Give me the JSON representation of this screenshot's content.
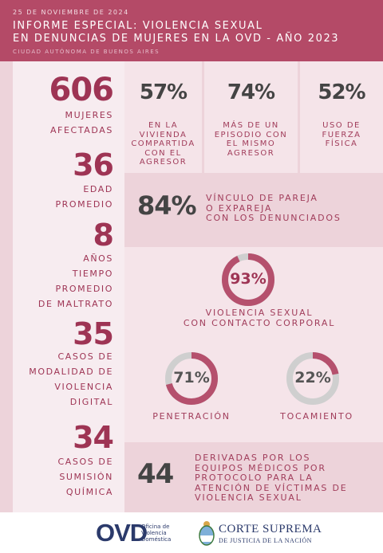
{
  "header": {
    "date": "25 DE NOVIEMBRE DE 2024",
    "title_line1": "INFORME ESPECIAL: VIOLENCIA SEXUAL",
    "title_line2": "EN DENUNCIAS DE MUJERES EN LA OVD - AÑO 2023",
    "city": "CIUDAD AUTÓNOMA DE BUENOS AIRES"
  },
  "left": [
    {
      "value": "606",
      "label": "MUJERES\nAFECTADAS"
    },
    {
      "value": "36",
      "label": "EDAD\nPROMEDIO"
    },
    {
      "value": "8",
      "label": "AÑOS\nTIEMPO\nPROMEDIO\nDE MALTRATO"
    },
    {
      "value": "35",
      "label": "CASOS DE\nMODALIDAD DE\nVIOLENCIA\nDIGITAL"
    },
    {
      "value": "34",
      "label": "CASOS DE\nSUMISIÓN\nQUÍMICA"
    }
  ],
  "stats_top": [
    {
      "value": "57%",
      "caption": "EN LA\nVIVIENDA\nCOMPARTIDA\nCON EL\nAGRESOR"
    },
    {
      "value": "74%",
      "caption": "MÁS DE UN\nEPISODIO CON\nEL MISMO\nAGRESOR"
    },
    {
      "value": "52%",
      "caption": "USO DE\nFUERZA\nFÍSICA"
    }
  ],
  "partner": {
    "value": "84%",
    "caption": "VÍNCULO DE PAREJA\nO EXPAREJA\nCON LOS DENUNCIADOS"
  },
  "rings": [
    {
      "percent": 93,
      "value": "93%",
      "caption": "VIOLENCIA SEXUAL\nCON CONTACTO CORPORAL"
    },
    {
      "percent": 71,
      "value": "71%",
      "caption": "PENETRACIÓN"
    },
    {
      "percent": 22,
      "value": "22%",
      "caption": "TOCAMIENTO"
    }
  ],
  "derived": {
    "value": "44",
    "caption": "DERIVADAS POR LOS\nEQUIPOS MÉDICOS POR\nPROTOCOLO PARA LA\nATENCIÓN DE VÍCTIMAS DE\nVIOLENCIA SEXUAL"
  },
  "footer": {
    "ovd_logo": "OVD",
    "ovd_sub1": "Oficina de",
    "ovd_sub2": "Violencia",
    "ovd_sub3": "Doméstica",
    "corte_line1": "CORTE SUPREMA",
    "corte_line2": "DE JUSTICIA DE LA NACIÓN"
  },
  "colors": {
    "header_bg": "#b44a67",
    "accent": "#9e3454",
    "ring_fill": "#b5506d",
    "ring_track": "#cfcfcf",
    "stat_text": "#444444"
  }
}
